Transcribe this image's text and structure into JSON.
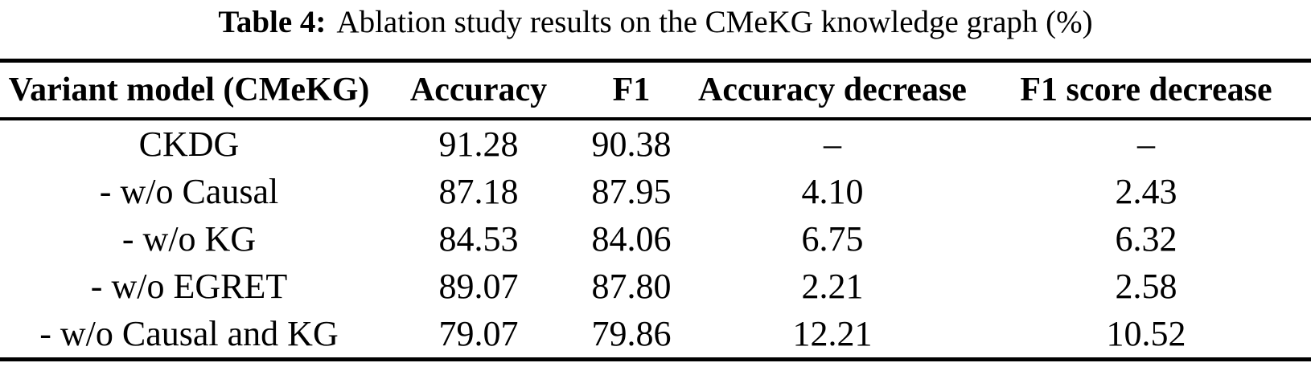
{
  "caption": {
    "label": "Table 4:",
    "text": "Ablation study results on the CMeKG knowledge graph (%)"
  },
  "table": {
    "columns": [
      "Variant model (CMeKG)",
      "Accuracy",
      "F1",
      "Accuracy decrease",
      "F1 score decrease"
    ],
    "rows": [
      {
        "variant": "CKDG",
        "accuracy": "91.28",
        "f1": "90.38",
        "accuracy_decrease": "–",
        "f1_score_decrease": "–"
      },
      {
        "variant": "- w/o Causal",
        "accuracy": "87.18",
        "f1": "87.95",
        "accuracy_decrease": "4.10",
        "f1_score_decrease": "2.43"
      },
      {
        "variant": "- w/o KG",
        "accuracy": "84.53",
        "f1": "84.06",
        "accuracy_decrease": "6.75",
        "f1_score_decrease": "6.32"
      },
      {
        "variant": "- w/o EGRET",
        "accuracy": "89.07",
        "f1": "87.80",
        "accuracy_decrease": "2.21",
        "f1_score_decrease": "2.58"
      },
      {
        "variant": "- w/o Causal and KG",
        "accuracy": "79.07",
        "f1": "79.86",
        "accuracy_decrease": "12.21",
        "f1_score_decrease": "10.52"
      }
    ]
  },
  "colors": {
    "text": "#000000",
    "background": "#ffffff",
    "rule": "#000000"
  }
}
